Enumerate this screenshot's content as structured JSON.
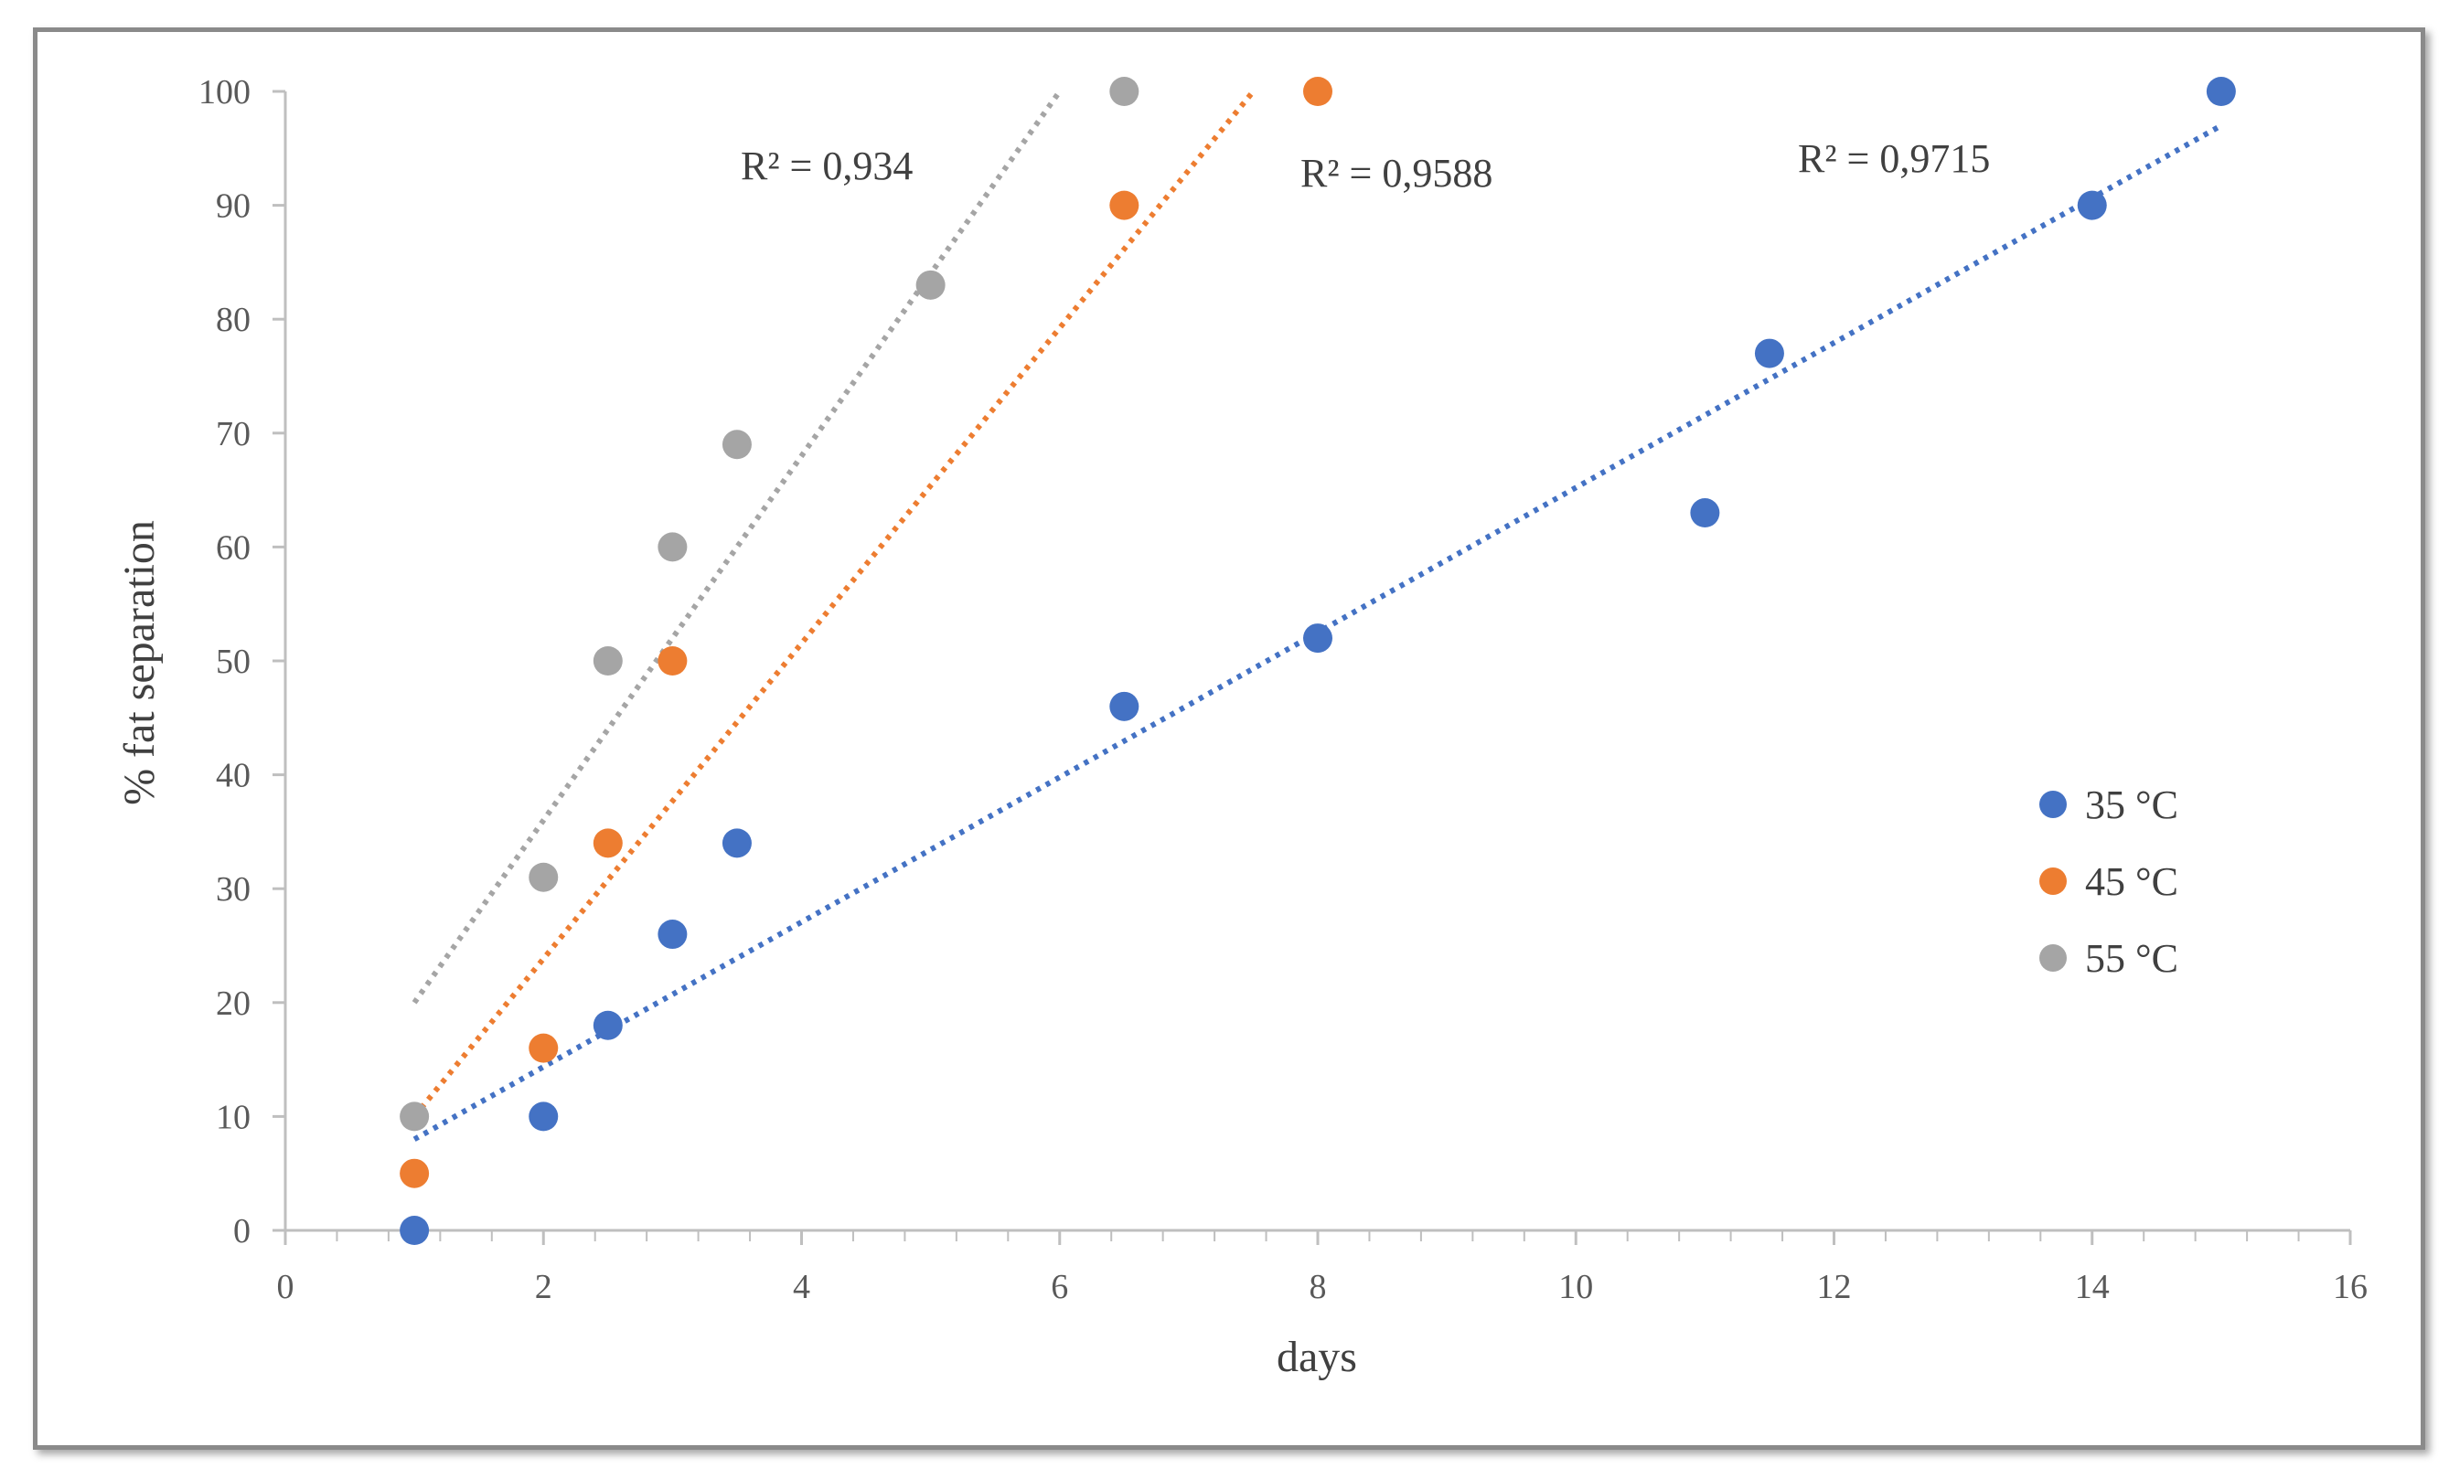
{
  "chart_data": {
    "type": "scatter",
    "title": "",
    "xlabel": "days",
    "ylabel": "% fat separation",
    "xlim": [
      0,
      16
    ],
    "ylim": [
      0,
      100
    ],
    "x_ticks": [
      0,
      2,
      4,
      6,
      8,
      10,
      12,
      14,
      16
    ],
    "y_ticks": [
      0,
      10,
      20,
      30,
      40,
      50,
      60,
      70,
      80,
      90,
      100
    ],
    "x_minor_step": 0.4,
    "grid": false,
    "legend_position": "right",
    "series": [
      {
        "name": "35 °C",
        "color": "#4472c4",
        "points": [
          {
            "x": 1,
            "y": 0
          },
          {
            "x": 2,
            "y": 10
          },
          {
            "x": 2.5,
            "y": 18
          },
          {
            "x": 3,
            "y": 26
          },
          {
            "x": 3.5,
            "y": 34
          },
          {
            "x": 6.5,
            "y": 46
          },
          {
            "x": 8,
            "y": 52
          },
          {
            "x": 11,
            "y": 63
          },
          {
            "x": 11.5,
            "y": 77
          },
          {
            "x": 14,
            "y": 90
          },
          {
            "x": 15,
            "y": 100
          }
        ],
        "trendline": {
          "x_start": 1,
          "y_start": 8,
          "x_end": 15,
          "y_end": 97
        },
        "r_squared_label": "R² = 0,9715"
      },
      {
        "name": "45 °C",
        "color": "#ed7d31",
        "points": [
          {
            "x": 1,
            "y": 5
          },
          {
            "x": 2,
            "y": 16
          },
          {
            "x": 2.5,
            "y": 34
          },
          {
            "x": 3,
            "y": 50
          },
          {
            "x": 6.5,
            "y": 90
          },
          {
            "x": 8,
            "y": 100
          }
        ],
        "trendline": {
          "x_start": 1,
          "y_start": 10,
          "x_end": 7.5,
          "y_end": 100
        },
        "r_squared_label": "R² = 0,9588"
      },
      {
        "name": "55 °C",
        "color": "#a5a5a5",
        "points": [
          {
            "x": 1,
            "y": 10
          },
          {
            "x": 2,
            "y": 31
          },
          {
            "x": 2.5,
            "y": 50
          },
          {
            "x": 3,
            "y": 60
          },
          {
            "x": 3.5,
            "y": 69
          },
          {
            "x": 5,
            "y": 83
          },
          {
            "x": 6.5,
            "y": 100
          }
        ],
        "trendline": {
          "x_start": 1,
          "y_start": 20,
          "x_end": 6,
          "y_end": 100
        },
        "r_squared_label": "R² = 0,934"
      }
    ],
    "annotation_order": [
      "55 °C",
      "45 °C",
      "35 °C"
    ]
  }
}
